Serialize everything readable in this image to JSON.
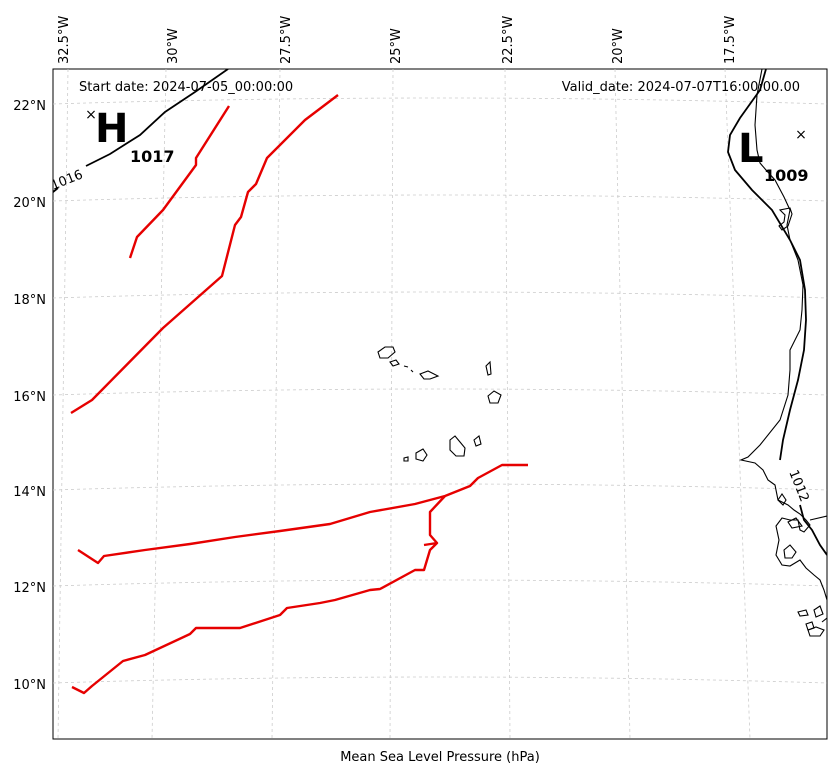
{
  "map": {
    "start_date": "Start date: 2024-07-05_00:00:00",
    "valid_date": "Valid_date: 2024-07-07T16:00:00.00",
    "xlabel": "Mean Sea Level Pressure (hPa)",
    "lon_ticks": [
      "32.5°W",
      "30°W",
      "27.5°W",
      "25°W",
      "22.5°W",
      "20°W",
      "17.5°W"
    ],
    "lat_ticks": [
      "22°N",
      "20°N",
      "18°N",
      "16°N",
      "14°N",
      "12°N",
      "10°N"
    ],
    "high": {
      "letter": "H",
      "pressure": "1017"
    },
    "low": {
      "letter": "L",
      "pressure": "1009"
    },
    "contour_labels": [
      "1016",
      "1012"
    ],
    "colors": {
      "front": "#e60000",
      "grid": "#cccccc",
      "coast": "#000000"
    }
  }
}
